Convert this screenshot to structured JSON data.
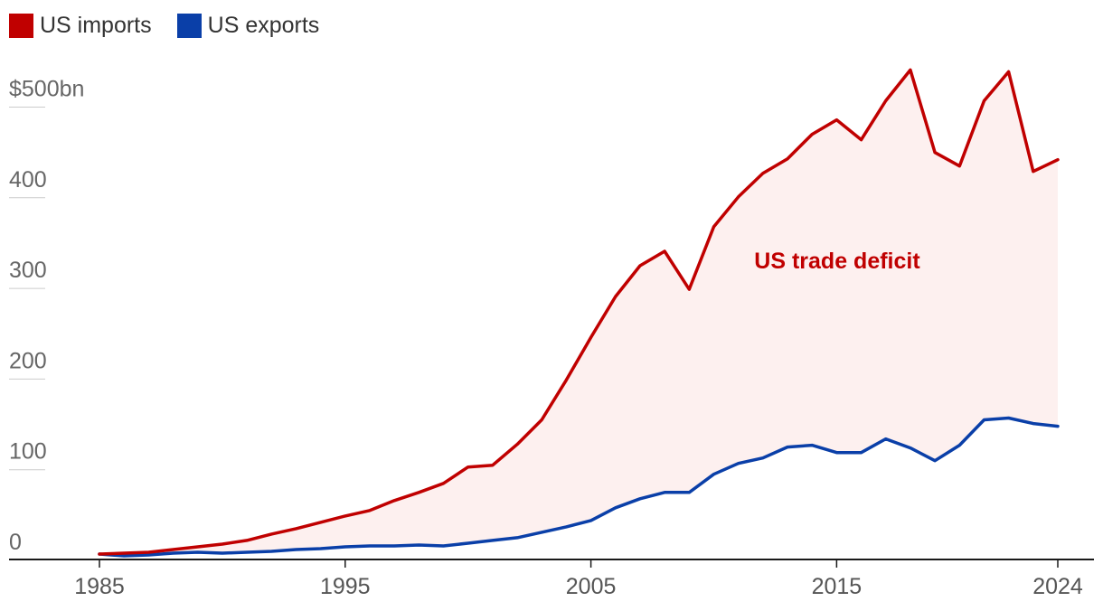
{
  "legend": [
    {
      "label": "US imports",
      "color": "#c00000"
    },
    {
      "label": "US exports",
      "color": "#0a3fa8"
    }
  ],
  "chart_data": {
    "type": "line",
    "x": [
      1985,
      1986,
      1987,
      1988,
      1989,
      1990,
      1991,
      1992,
      1993,
      1994,
      1995,
      1996,
      1997,
      1998,
      1999,
      2000,
      2001,
      2002,
      2003,
      2004,
      2005,
      2006,
      2007,
      2008,
      2009,
      2010,
      2011,
      2012,
      2013,
      2014,
      2015,
      2016,
      2017,
      2018,
      2019,
      2020,
      2021,
      2022,
      2023,
      2024
    ],
    "series": [
      {
        "name": "US imports",
        "color": "#c00000",
        "values": [
          4,
          5,
          6,
          9,
          12,
          15,
          19,
          26,
          32,
          39,
          46,
          52,
          63,
          72,
          82,
          100,
          102,
          125,
          152,
          196,
          243,
          288,
          322,
          338,
          296,
          365,
          398,
          424,
          440,
          467,
          483,
          461,
          504,
          538,
          447,
          432,
          504,
          536,
          426,
          439
        ]
      },
      {
        "name": "US exports",
        "color": "#0a3fa8",
        "values": [
          4,
          2,
          3,
          5,
          6,
          5,
          6,
          7,
          9,
          10,
          12,
          13,
          13,
          14,
          13,
          16,
          19,
          22,
          28,
          34,
          41,
          55,
          65,
          72,
          72,
          92,
          104,
          110,
          122,
          124,
          116,
          116,
          131,
          121,
          107,
          124,
          152,
          154,
          148,
          145
        ]
      }
    ],
    "annotations": [
      {
        "text": "US trade deficit",
        "x": 2016.8,
        "y": 319,
        "color": "#c00000"
      }
    ],
    "fill_between": {
      "color": "#fdf0ef"
    },
    "y_ticks": [
      "0",
      "100",
      "200",
      "300",
      "400",
      "$500bn"
    ],
    "y_tick_values": [
      0,
      100,
      200,
      300,
      400,
      500
    ],
    "x_ticks": [
      "1985",
      "1995",
      "2005",
      "2015",
      "2024"
    ],
    "x_tick_values": [
      1985,
      1995,
      2005,
      2015,
      2024
    ],
    "xlim": [
      1985,
      2024
    ],
    "ylim": [
      0,
      520
    ],
    "grid": false
  }
}
